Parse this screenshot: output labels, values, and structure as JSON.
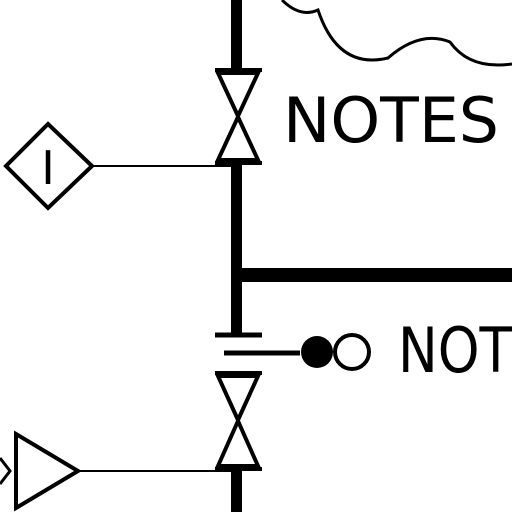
{
  "diagram": {
    "labels": {
      "notes_top": "NOTES",
      "notes_mid": "NOT",
      "instrument": "I"
    },
    "colors": {
      "line": "#000000",
      "background": "#ffffff"
    }
  }
}
